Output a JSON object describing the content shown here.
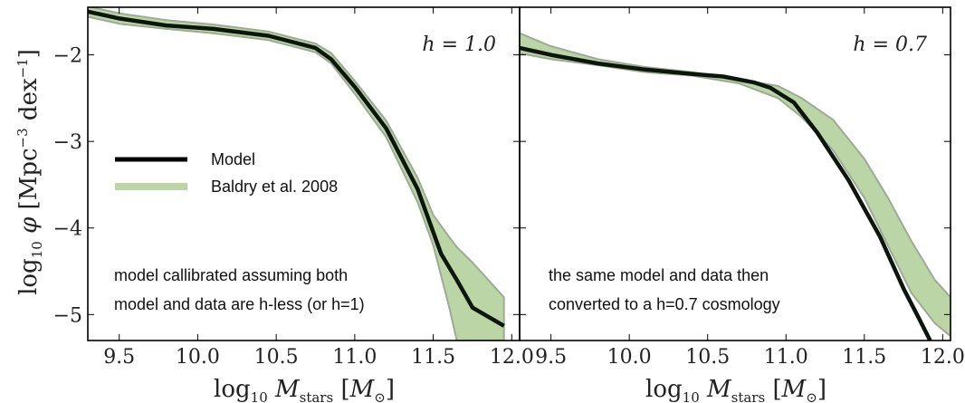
{
  "chart_data": [
    {
      "type": "line",
      "panel": "left",
      "annotation": "h = 1.0",
      "note_lines": [
        "model callibrated assuming both",
        "model and data are h-less (or h=1)"
      ],
      "xlabel": "log10 M_stars [M_sun]",
      "ylabel": "log10 φ [Mpc^-3 dex^-1]",
      "xlim": [
        9.3,
        12.05
      ],
      "ylim": [
        -5.3,
        -1.45
      ],
      "xticks": [
        "9.5",
        "10.0",
        "10.5",
        "11.0",
        "11.5",
        "12.0"
      ],
      "yticks": [
        "−2",
        "−3",
        "−4",
        "−5"
      ],
      "legend": {
        "placement": "center-left",
        "entries": [
          "Model",
          "Baldry et al. 2008"
        ]
      },
      "series": [
        {
          "name": "Model",
          "kind": "line",
          "color": "#0c160c",
          "x": [
            9.3,
            9.5,
            9.8,
            10.1,
            10.45,
            10.75,
            10.85,
            11.0,
            11.2,
            11.4,
            11.55,
            11.65,
            11.75,
            11.95
          ],
          "y": [
            -1.5,
            -1.58,
            -1.66,
            -1.7,
            -1.78,
            -1.92,
            -2.05,
            -2.37,
            -2.85,
            -3.55,
            -4.3,
            -4.6,
            -4.92,
            -5.13
          ]
        },
        {
          "name": "Baldry et al. 2008",
          "kind": "band",
          "color": "#bcd5a6",
          "edge_color": "#9cab94",
          "x": [
            9.3,
            9.5,
            9.8,
            10.1,
            10.45,
            10.75,
            10.85,
            11.0,
            11.2,
            11.4,
            11.5,
            11.6,
            11.65,
            11.75,
            11.95
          ],
          "upper": [
            -1.44,
            -1.52,
            -1.6,
            -1.65,
            -1.73,
            -1.87,
            -1.98,
            -2.3,
            -2.76,
            -3.42,
            -3.85,
            -4.1,
            -4.22,
            -4.4,
            -4.8
          ],
          "lower": [
            -1.56,
            -1.64,
            -1.7,
            -1.75,
            -1.83,
            -1.97,
            -2.1,
            -2.45,
            -2.95,
            -3.7,
            -4.2,
            -4.9,
            -5.3,
            -5.3,
            -5.3
          ]
        }
      ]
    },
    {
      "type": "line",
      "panel": "right",
      "annotation": "h = 0.7",
      "note_lines": [
        "the same model and data then",
        "converted to a h=0.7 cosmology"
      ],
      "xlabel": "log10 M_stars [M_sun]",
      "xlim": [
        9.3,
        12.05
      ],
      "ylim": [
        -5.3,
        -1.45
      ],
      "xticks": [
        "9.5",
        "10.0",
        "10.5",
        "11.0",
        "11.5",
        "12.0"
      ],
      "series": [
        {
          "name": "Model",
          "kind": "line",
          "color": "#0c160c",
          "x": [
            9.3,
            9.5,
            9.8,
            10.1,
            10.4,
            10.6,
            10.8,
            10.9,
            11.05,
            11.2,
            11.4,
            11.6,
            11.75,
            11.85,
            11.92
          ],
          "y": [
            -1.92,
            -2.0,
            -2.1,
            -2.17,
            -2.22,
            -2.25,
            -2.32,
            -2.38,
            -2.55,
            -2.9,
            -3.45,
            -4.1,
            -4.7,
            -5.05,
            -5.3
          ]
        },
        {
          "name": "Baldry et al. 2008",
          "kind": "band",
          "color": "#bcd5a6",
          "edge_color": "#9cab94",
          "x": [
            9.3,
            9.5,
            9.8,
            10.1,
            10.4,
            10.7,
            10.95,
            11.1,
            11.3,
            11.5,
            11.65,
            11.8,
            11.95,
            12.05
          ],
          "upper": [
            -1.75,
            -1.9,
            -2.05,
            -2.14,
            -2.2,
            -2.28,
            -2.36,
            -2.5,
            -2.75,
            -3.2,
            -3.65,
            -4.15,
            -4.6,
            -4.8
          ],
          "lower": [
            -1.98,
            -2.05,
            -2.12,
            -2.2,
            -2.24,
            -2.33,
            -2.5,
            -2.72,
            -3.1,
            -3.65,
            -4.2,
            -4.75,
            -5.1,
            -5.25
          ]
        }
      ]
    }
  ]
}
